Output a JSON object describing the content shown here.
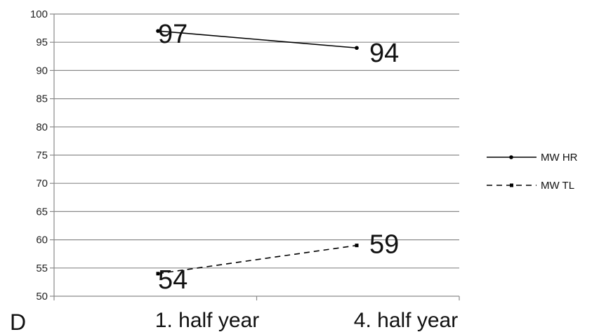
{
  "panel_label": "D",
  "chart_data": {
    "type": "line",
    "title": "",
    "xlabel": "",
    "ylabel": "",
    "categories": [
      "1. half year",
      "4. half year"
    ],
    "ylim": [
      50,
      100
    ],
    "yticks": [
      50,
      55,
      60,
      65,
      70,
      75,
      80,
      85,
      90,
      95,
      100
    ],
    "grid": true,
    "legend_position": "right",
    "series": [
      {
        "name": "MW HR",
        "values": [
          97,
          94
        ],
        "data_labels": [
          "97",
          "94"
        ],
        "line_style": "solid",
        "color": "#000000"
      },
      {
        "name": "MW TL",
        "values": [
          54,
          59
        ],
        "data_labels": [
          "54",
          "59"
        ],
        "line_style": "dashed",
        "color": "#000000"
      }
    ]
  }
}
